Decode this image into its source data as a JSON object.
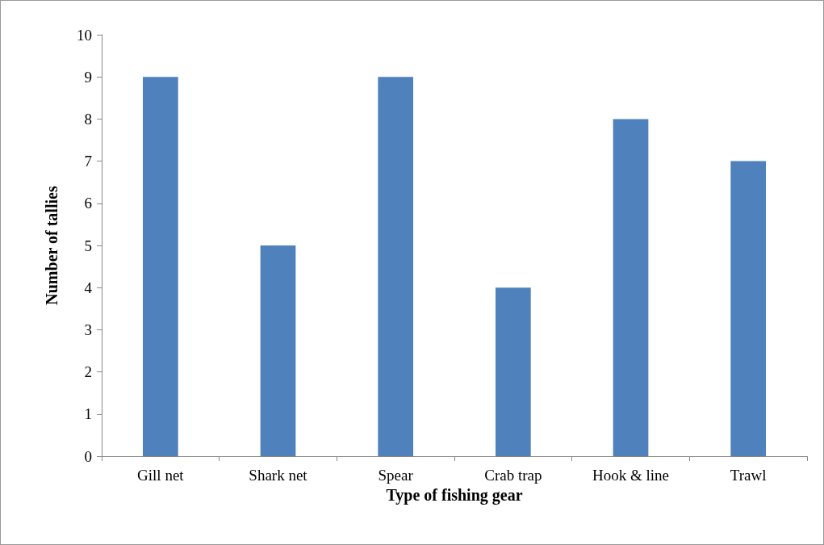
{
  "chart_data": {
    "type": "bar",
    "xlabel": "Type of fishing gear",
    "ylabel": "Number of tallies",
    "categories": [
      "Gill net",
      "Shark net",
      "Spear",
      "Crab trap",
      "Hook & line",
      "Trawl"
    ],
    "values": [
      9,
      5,
      9,
      4,
      8,
      7
    ],
    "color": "#4f81bd",
    "ylim": [
      0,
      10
    ],
    "yticks": [
      0,
      1,
      2,
      3,
      4,
      5,
      6,
      7,
      8,
      9,
      10
    ],
    "grid": false
  }
}
